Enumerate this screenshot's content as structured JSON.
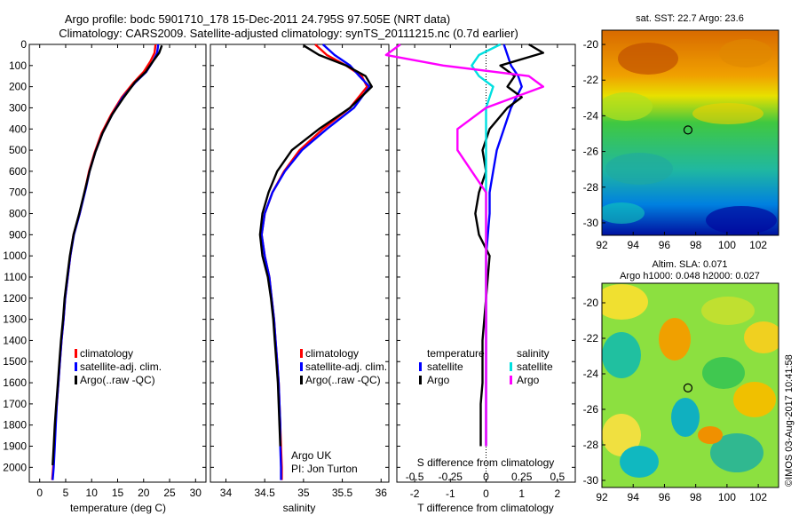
{
  "header": {
    "line1": "Argo profile: bodc 5901710_178 15-Dec-2011 24.795S 97.505E (NRT data)",
    "line2": "Climatology: CARS2009. Satellite-adjusted climatology: synTS_20111215.nc (0.7d earlier)"
  },
  "colors": {
    "climatology": "#ff0000",
    "satellite": "#0000ff",
    "argo": "#000000",
    "salinity_satellite": "#00e0e0",
    "salinity_argo": "#ff00ff"
  },
  "chart_data": [
    {
      "id": "temperature",
      "type": "line",
      "xlabel": "temperature (deg C)",
      "ylabel": "",
      "xlim": [
        -2,
        32
      ],
      "ylim": [
        2070,
        0
      ],
      "xticks": [
        0,
        5,
        10,
        15,
        20,
        25,
        30
      ],
      "yticks": [
        0,
        100,
        200,
        300,
        400,
        500,
        600,
        700,
        800,
        900,
        1000,
        1100,
        1200,
        1300,
        1400,
        1500,
        1600,
        1700,
        1800,
        1900,
        2000
      ],
      "legend": [
        "climatology",
        "satellite-adj. clim.",
        "Argo(..raw -QC)"
      ],
      "series": [
        {
          "name": "climatology",
          "color": "#ff0000",
          "x": [
            22.3,
            22.1,
            21.3,
            20.0,
            18.1,
            15.8,
            13.8,
            11.9,
            10.6,
            9.5,
            8.8,
            7.7,
            6.5,
            5.9,
            5.4,
            4.9,
            4.6,
            4.2,
            3.9,
            3.6,
            3.3,
            3.0,
            2.8,
            2.6,
            2.4
          ],
          "y": [
            0,
            40,
            80,
            130,
            180,
            250,
            330,
            420,
            510,
            600,
            680,
            800,
            900,
            1000,
            1100,
            1200,
            1300,
            1400,
            1500,
            1600,
            1700,
            1800,
            1900,
            2000,
            2060
          ]
        },
        {
          "name": "satellite-adj. clim.",
          "color": "#0000ff",
          "x": [
            22.8,
            22.6,
            21.8,
            20.5,
            18.4,
            16.0,
            14.0,
            12.1,
            10.7,
            9.6,
            8.9,
            7.7,
            6.6,
            5.9,
            5.4,
            4.9,
            4.6,
            4.2,
            3.9,
            3.6,
            3.3,
            3.1,
            2.9,
            2.7,
            2.5
          ],
          "y": [
            0,
            40,
            80,
            130,
            180,
            250,
            330,
            420,
            510,
            600,
            680,
            800,
            900,
            1000,
            1100,
            1200,
            1300,
            1400,
            1500,
            1600,
            1700,
            1800,
            1900,
            2000,
            2060
          ]
        },
        {
          "name": "Argo(..raw -QC)",
          "color": "#000000",
          "x": [
            23.5,
            23.0,
            21.8,
            20.4,
            18.3,
            16.2,
            14.0,
            12.1,
            10.7,
            9.6,
            8.8,
            7.6,
            6.5,
            5.8,
            5.3,
            4.8,
            4.5,
            4.1,
            3.8,
            3.5,
            3.2,
            2.9,
            2.7,
            2.5
          ],
          "y": [
            5,
            40,
            80,
            130,
            180,
            250,
            330,
            420,
            510,
            600,
            680,
            800,
            900,
            1000,
            1100,
            1200,
            1300,
            1400,
            1500,
            1600,
            1700,
            1800,
            1900,
            1990
          ]
        }
      ]
    },
    {
      "id": "salinity",
      "type": "line",
      "xlabel": "salinity",
      "ylabel": "",
      "xlim": [
        33.8,
        36.1
      ],
      "ylim": [
        2070,
        0
      ],
      "xticks": [
        34,
        34.5,
        35,
        35.5,
        36
      ],
      "legend": [
        "climatology",
        "satellite-adj. clim.",
        "Argo(..raw -QC)"
      ],
      "series": [
        {
          "name": "climatology",
          "color": "#ff0000",
          "x": [
            35.15,
            35.3,
            35.55,
            35.75,
            35.82,
            35.6,
            35.25,
            34.95,
            34.75,
            34.6,
            34.5,
            34.46,
            34.5,
            34.56,
            34.59,
            34.62,
            34.64,
            34.66,
            34.68,
            34.69,
            34.7,
            34.71,
            34.72,
            34.72
          ],
          "y": [
            0,
            50,
            100,
            150,
            200,
            300,
            400,
            500,
            600,
            700,
            800,
            900,
            1000,
            1100,
            1200,
            1300,
            1400,
            1500,
            1600,
            1700,
            1800,
            1900,
            2000,
            2060
          ]
        },
        {
          "name": "satellite-adj. clim.",
          "color": "#0000ff",
          "x": [
            35.25,
            35.4,
            35.6,
            35.72,
            35.85,
            35.65,
            35.3,
            34.98,
            34.76,
            34.6,
            34.5,
            34.46,
            34.5,
            34.56,
            34.59,
            34.62,
            34.64,
            34.66,
            34.68,
            34.69,
            34.7,
            34.7,
            34.71,
            34.71
          ],
          "y": [
            0,
            50,
            100,
            150,
            200,
            300,
            400,
            500,
            600,
            700,
            800,
            900,
            1000,
            1100,
            1200,
            1300,
            1400,
            1500,
            1600,
            1700,
            1800,
            1900,
            2000,
            2060
          ]
        },
        {
          "name": "Argo(..raw -QC)",
          "color": "#000000",
          "x": [
            35.0,
            35.2,
            35.55,
            35.8,
            35.88,
            35.6,
            35.2,
            34.85,
            34.66,
            34.55,
            34.47,
            34.44,
            34.47,
            34.54,
            34.58,
            34.61,
            34.63,
            34.65,
            34.67,
            34.68,
            34.69,
            34.7
          ],
          "y": [
            5,
            50,
            100,
            150,
            200,
            300,
            400,
            500,
            600,
            700,
            800,
            900,
            1000,
            1100,
            1200,
            1300,
            1400,
            1500,
            1600,
            1700,
            1800,
            1900
          ]
        }
      ]
    },
    {
      "id": "difference",
      "type": "line",
      "xlabel": "T difference from climatology",
      "xlabel_top": "S difference from climatology",
      "xlim": [
        -2.5,
        2.5
      ],
      "ylim": [
        2070,
        0
      ],
      "xticks": [
        -2,
        -1,
        0,
        1,
        2
      ],
      "s_xticks": [
        "-0.5",
        "-0.25",
        "0",
        "0.25",
        "0.5"
      ],
      "s_xtick_vals": [
        -0.5,
        -0.25,
        0,
        0.25,
        0.5
      ],
      "s_scale": 0.25,
      "legend": {
        "temperature_title": "temperature",
        "salinity_title": "salinity",
        "satellite": "satellite",
        "argo": "Argo"
      },
      "series": [
        {
          "name": "temperature satellite",
          "color": "#0000ff",
          "x": [
            0.5,
            0.6,
            0.7,
            0.9,
            1.0,
            0.7,
            0.5,
            0.3,
            0.2,
            0.1,
            0.1,
            0.05,
            0.0,
            0.0,
            0.0,
            0.0,
            0.0,
            0.0,
            0.0,
            0.0,
            0.0,
            0.0
          ],
          "y": [
            0,
            50,
            100,
            150,
            200,
            300,
            400,
            500,
            600,
            700,
            800,
            900,
            1000,
            1100,
            1200,
            1300,
            1400,
            1500,
            1600,
            1700,
            1800,
            1900
          ]
        },
        {
          "name": "temperature Argo",
          "color": "#000000",
          "x": [
            1.2,
            1.6,
            0.4,
            0.8,
            0.6,
            1.0,
            0.6,
            0.1,
            -0.1,
            0.0,
            -0.2,
            -0.3,
            -0.2,
            0.1,
            0.05,
            0.0,
            -0.05,
            -0.1,
            -0.1,
            -0.1,
            -0.15,
            -0.15
          ],
          "y": [
            0,
            40,
            100,
            150,
            200,
            250,
            300,
            400,
            500,
            600,
            700,
            800,
            900,
            1000,
            1100,
            1200,
            1300,
            1400,
            1500,
            1600,
            1700,
            1900
          ]
        },
        {
          "name": "salinity satellite",
          "color": "#00e0e0",
          "x": [
            0.1,
            -0.05,
            -0.1,
            -0.05,
            0.05,
            0.0,
            0.0,
            0.0,
            0.0,
            0.0,
            0.0,
            0.0,
            0.0,
            0.0,
            0.0,
            0.0,
            0.0
          ],
          "y": [
            0,
            50,
            100,
            150,
            200,
            300,
            400,
            500,
            600,
            700,
            800,
            900,
            1000,
            1100,
            1200,
            1500,
            1900
          ]
        },
        {
          "name": "salinity Argo",
          "color": "#ff00ff",
          "x": [
            -0.6,
            -0.7,
            -0.3,
            0.3,
            0.4,
            0.0,
            -0.2,
            -0.2,
            -0.1,
            0.0,
            0.0,
            0.0,
            0.0,
            0.0,
            0.0,
            0.0
          ],
          "y": [
            0,
            50,
            100,
            150,
            200,
            300,
            400,
            500,
            600,
            700,
            800,
            900,
            1000,
            1200,
            1500,
            1900
          ]
        }
      ]
    },
    {
      "id": "sst_map",
      "type": "heatmap",
      "title": "sat. SST: 22.7 Argo: 23.6",
      "xlim": [
        92,
        103.3
      ],
      "ylim": [
        -30.7,
        -19.2
      ],
      "xticks": [
        92,
        94,
        96,
        98,
        100,
        102
      ],
      "yticks": [
        -20,
        -22,
        -24,
        -26,
        -28,
        -30
      ],
      "marker": {
        "lon": 97.505,
        "lat": -24.795
      }
    },
    {
      "id": "sla_map",
      "type": "heatmap",
      "title_line1": "Altim. SLA: 0.071",
      "title_line2": "Argo h1000: 0.048 h2000: 0.027",
      "xlim": [
        92,
        103.3
      ],
      "ylim": [
        -30.4,
        -18.9
      ],
      "xticks": [
        92,
        94,
        96,
        98,
        100,
        102
      ],
      "yticks": [
        -20,
        -22,
        -24,
        -26,
        -28,
        -30
      ],
      "marker": {
        "lon": 97.505,
        "lat": -24.795
      }
    }
  ],
  "credits": {
    "platform": "Argo UK",
    "pi": "PI: Jon Turton",
    "imos": "©IMOS 03-Aug-2017 10:41:58"
  }
}
